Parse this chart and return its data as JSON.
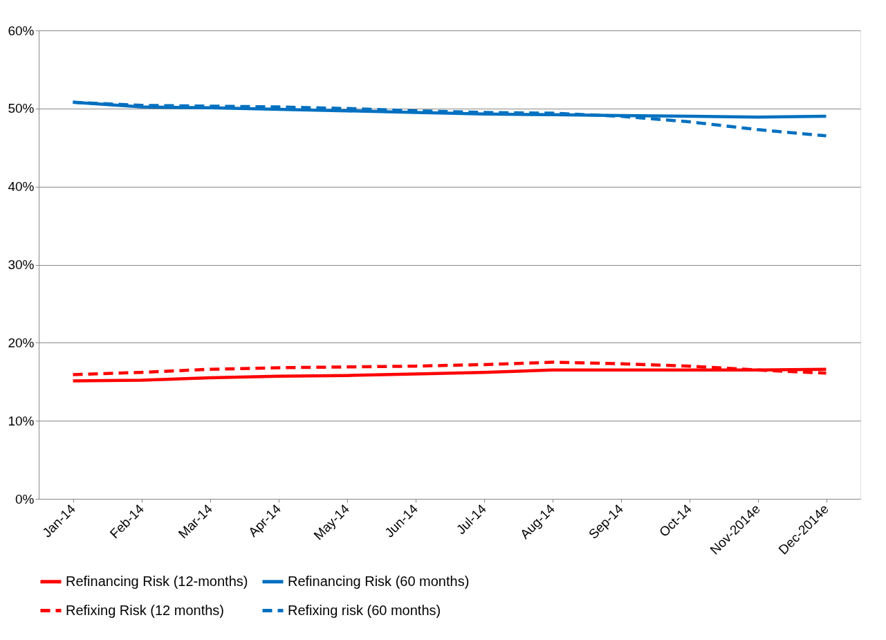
{
  "chart_data": {
    "type": "line",
    "categories": [
      "Jan-14",
      "Feb-14",
      "Mar-14",
      "Apr-14",
      "May-14",
      "Jun-14",
      "Jul-14",
      "Aug-14",
      "Sep-14",
      "Oct-14",
      "Nov-2014e",
      "Dec-2014e"
    ],
    "series": [
      {
        "name": "Refinancing Risk (12-months)",
        "color": "#ff0000",
        "line_style": "solid",
        "values": [
          15.1,
          15.2,
          15.5,
          15.7,
          15.8,
          16.0,
          16.2,
          16.5,
          16.5,
          16.5,
          16.5,
          16.6
        ]
      },
      {
        "name": "Refinancing Risk (60 months)",
        "color": "#0070c0",
        "line_style": "solid",
        "values": [
          50.8,
          50.2,
          50.1,
          49.9,
          49.7,
          49.5,
          49.3,
          49.2,
          49.1,
          49.0,
          48.9,
          49.0
        ]
      },
      {
        "name": "Refixing Risk (12 months)",
        "color": "#ff0000",
        "line_style": "dashed",
        "values": [
          15.9,
          16.2,
          16.6,
          16.8,
          16.9,
          17.0,
          17.2,
          17.5,
          17.3,
          17.0,
          16.5,
          16.1
        ]
      },
      {
        "name": "Refixing risk (60 months)",
        "color": "#0070c0",
        "line_style": "dashed",
        "values": [
          50.8,
          50.4,
          50.3,
          50.2,
          50.0,
          49.7,
          49.5,
          49.4,
          49.0,
          48.3,
          47.3,
          46.5
        ]
      }
    ],
    "ylim": [
      0,
      60
    ],
    "yticks": [
      {
        "value": 0,
        "label": "0%"
      },
      {
        "value": 10,
        "label": "10%"
      },
      {
        "value": 20,
        "label": "20%"
      },
      {
        "value": 30,
        "label": "30%"
      },
      {
        "value": 40,
        "label": "40%"
      },
      {
        "value": 50,
        "label": "50%"
      },
      {
        "value": 60,
        "label": "60%"
      }
    ],
    "grid": "y",
    "legend": "bottom",
    "marker": "none"
  }
}
